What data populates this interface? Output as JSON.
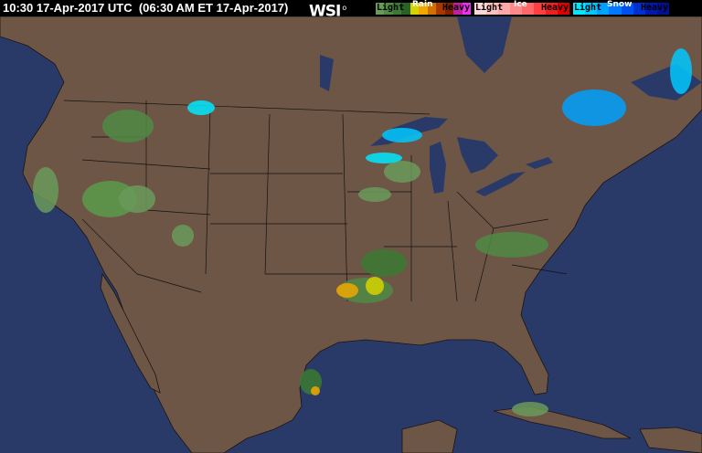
{
  "header": {
    "title": "10:30 17-Apr-2017 UTC  (06:30 AM ET 17-Apr-2017)",
    "logo": "WSI"
  },
  "legend": {
    "rain": {
      "label": "Rain",
      "light": "Light",
      "heavy": "Heavy",
      "colors": [
        "#6a9a5a",
        "#4f8a44",
        "#3b7a32",
        "#2a6226",
        "#d6d400",
        "#f0a800",
        "#d07000",
        "#a83800",
        "#802000",
        "#c020a0",
        "#f030f0"
      ]
    },
    "ice": {
      "label": "Ice",
      "light": "Light",
      "heavy": "Heavy",
      "colors": [
        "#ffd8d8",
        "#ffc0c0",
        "#ffa8a8",
        "#ff8888",
        "#ff6868",
        "#ff4040",
        "#f02020",
        "#e00000"
      ]
    },
    "snow": {
      "label": "Snow",
      "light": "Light",
      "heavy": "Heavy",
      "colors": [
        "#00e8ff",
        "#00c8ff",
        "#00a0ff",
        "#0078ff",
        "#0050f0",
        "#0030d0",
        "#0018b0",
        "#001090"
      ]
    }
  },
  "colors": {
    "ocean": "#2a3a68",
    "land": "#6e5646",
    "borders": "#000000"
  }
}
